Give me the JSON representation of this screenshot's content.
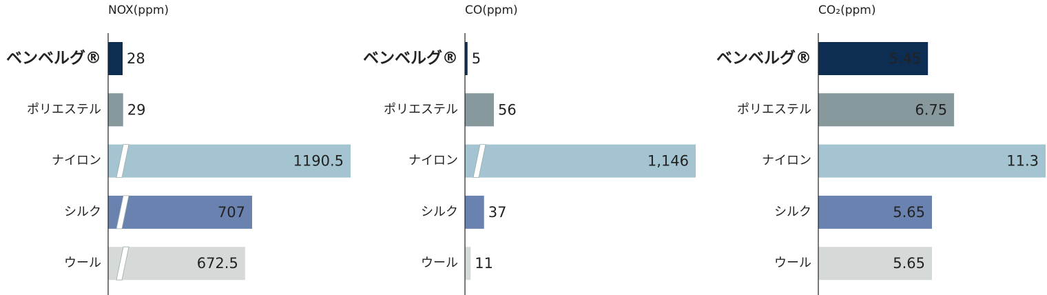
{
  "chart_data": [
    {
      "type": "bar",
      "orientation": "horizontal",
      "title": "NOX(ppm)",
      "axis_break": true,
      "categories": [
        "ベンベルグ®",
        "ポリエステル",
        "ナイロン",
        "シルク",
        "ウール"
      ],
      "values": [
        28,
        29,
        1190.5,
        707,
        672.5
      ],
      "colors": [
        "#0e2d52",
        "#87999d",
        "#a3c4d0",
        "#6a82b0",
        "#d5dad8"
      ]
    },
    {
      "type": "bar",
      "orientation": "horizontal",
      "title": "CO(ppm)",
      "axis_break": true,
      "categories": [
        "ベンベルグ®",
        "ポリエステル",
        "ナイロン",
        "シルク",
        "ウール"
      ],
      "values": [
        5,
        56,
        1146,
        37,
        11
      ],
      "value_labels": [
        "5",
        "56",
        "1,146",
        "37",
        "11"
      ],
      "colors": [
        "#0e2d52",
        "#87999d",
        "#a3c4d0",
        "#6a82b0",
        "#d5dad8"
      ]
    },
    {
      "type": "bar",
      "orientation": "horizontal",
      "title": "CO₂(ppm)",
      "axis_break": false,
      "categories": [
        "ベンベルグ®",
        "ポリエステル",
        "ナイロン",
        "シルク",
        "ウール"
      ],
      "values": [
        5.45,
        6.75,
        11.3,
        5.65,
        5.65
      ],
      "colors": [
        "#0e2d52",
        "#87999d",
        "#a3c4d0",
        "#6a82b0",
        "#d5dad8"
      ]
    }
  ]
}
